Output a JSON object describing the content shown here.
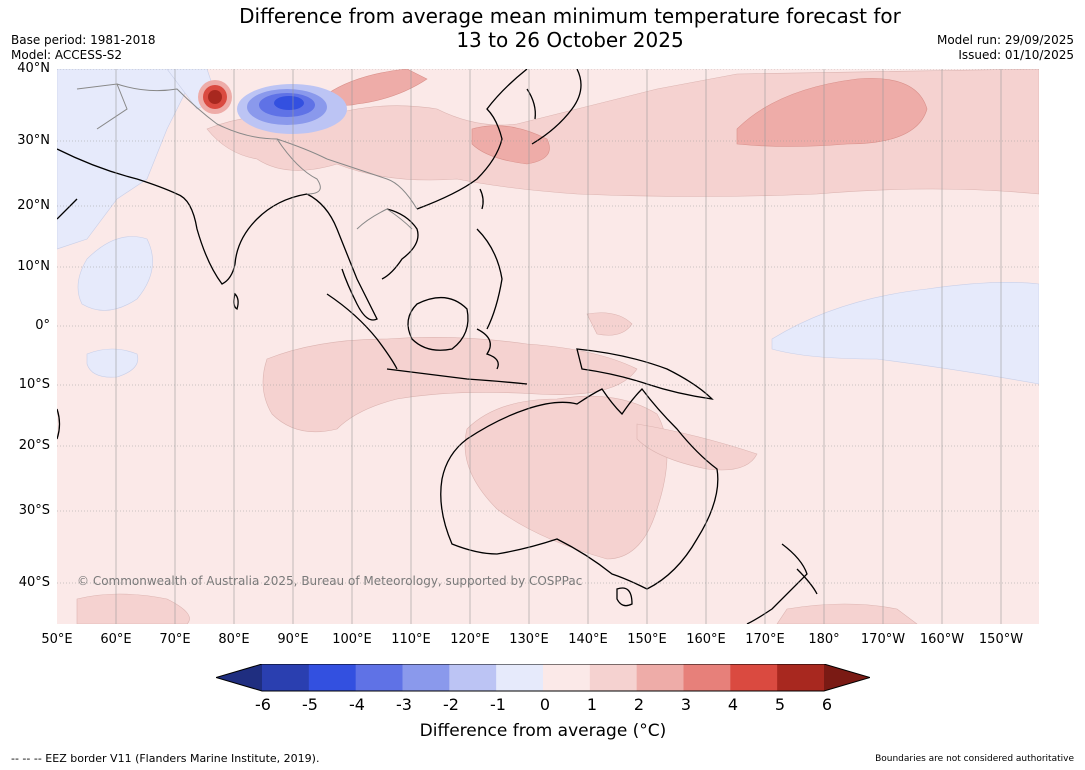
{
  "title_line1": "Difference from average mean minimum temperature forecast for",
  "title_line2": "13 to 26 October 2025",
  "meta": {
    "base_period": "Base period: 1981-2018",
    "model": "Model: ACCESS-S2",
    "model_run": "Model run: 29/09/2025",
    "issued": "Issued: 01/10/2025"
  },
  "lat_labels": [
    "40°N",
    "30°N",
    "20°N",
    "10°N",
    "0°",
    "10°S",
    "20°S",
    "30°S",
    "40°S"
  ],
  "lon_labels": [
    "50°E",
    "60°E",
    "70°E",
    "80°E",
    "90°E",
    "100°E",
    "110°E",
    "120°E",
    "130°E",
    "140°E",
    "150°E",
    "160°E",
    "170°E",
    "180°",
    "170°W",
    "160°W",
    "150°W"
  ],
  "copyright": "© Commonwealth of Australia 2025, Bureau of Meteorology, supported by COSPPac",
  "colorbar": {
    "ticks": [
      "-6",
      "-5",
      "-4",
      "-3",
      "-2",
      "-1",
      "0",
      "1",
      "2",
      "3",
      "4",
      "5",
      "6"
    ],
    "colors": [
      "#1f2e80",
      "#2a3fb0",
      "#3350e0",
      "#5f72e6",
      "#8a99ec",
      "#bcc4f4",
      "#e6eafb",
      "#fbe9e8",
      "#f5d2d0",
      "#eeaca8",
      "#e7807a",
      "#da4a40",
      "#a8281f",
      "#7a1a14"
    ],
    "title": "Difference from average (°C)"
  },
  "footer_left": "--  --  -- EEZ border V11 (Flanders Marine Institute, 2019).",
  "footer_right": "Boundaries are not considered authoritative"
}
